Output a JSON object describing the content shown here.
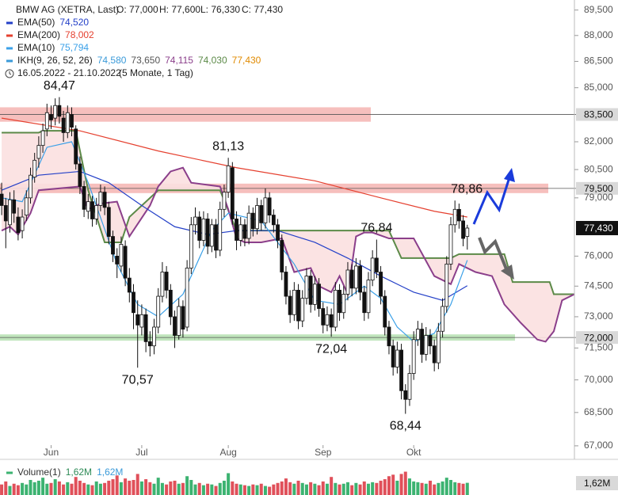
{
  "chart_data": {
    "type": "candlestick",
    "title": "BMW AG (XETRA, Last)",
    "ohlc_labels": [
      "O: 77,000",
      "H: 77,600",
      "L: 76,330",
      "C: 77,430"
    ],
    "date_range": "16.05.2022 - 21.10.2022",
    "period": "(5 Monate, 1 Tag)",
    "log": true,
    "ylim": [
      66.4,
      90.1
    ],
    "yticks": [
      {
        "value": 89.5,
        "label": "89,500"
      },
      {
        "value": 88,
        "label": "88,000"
      },
      {
        "value": 86.5,
        "label": "86,500"
      },
      {
        "value": 85,
        "label": "85,000"
      },
      {
        "value": 82,
        "label": "82,000"
      },
      {
        "value": 80.5,
        "label": "80,500"
      },
      {
        "value": 79,
        "label": "79,000"
      },
      {
        "value": 76,
        "label": "76,000"
      },
      {
        "value": 74.5,
        "label": "74,500"
      },
      {
        "value": 73,
        "label": "73,000"
      },
      {
        "value": 71.5,
        "label": "71,500"
      },
      {
        "value": 70,
        "label": "70,000"
      },
      {
        "value": 68.5,
        "label": "68,500"
      },
      {
        "value": 67,
        "label": "67,000"
      }
    ],
    "xlim": [
      -0.4,
      139
    ],
    "xticks": [
      {
        "value": 12,
        "label": "Jun"
      },
      {
        "value": 34,
        "label": "Jul"
      },
      {
        "value": 55,
        "label": "Aug"
      },
      {
        "value": 78,
        "label": "Sep"
      },
      {
        "value": 100,
        "label": "Okt"
      }
    ],
    "candles": [
      [
        79.2,
        79.8,
        78.1,
        78.6
      ],
      [
        78.6,
        79.0,
        76.4,
        77.8
      ],
      [
        77.6,
        79.3,
        77.2,
        78.9
      ],
      [
        78.9,
        79.4,
        77.7,
        78.2
      ],
      [
        78.0,
        78.5,
        76.8,
        77.2
      ],
      [
        77.3,
        78.4,
        76.9,
        78.0
      ],
      [
        78.1,
        79.4,
        77.8,
        79.0
      ],
      [
        79.0,
        80.6,
        78.7,
        80.2
      ],
      [
        80.1,
        81.4,
        79.8,
        81.0
      ],
      [
        81.1,
        82.3,
        80.6,
        81.8
      ],
      [
        81.8,
        83.0,
        81.4,
        82.6
      ],
      [
        82.7,
        84.1,
        82.3,
        83.6
      ],
      [
        83.5,
        84.0,
        82.7,
        83.2
      ],
      [
        83.3,
        84.4,
        82.9,
        84.0
      ],
      [
        84.0,
        84.47,
        83.0,
        83.4
      ],
      [
        83.3,
        83.7,
        82.0,
        82.5
      ],
      [
        82.5,
        84.0,
        82.2,
        83.6
      ],
      [
        83.5,
        83.9,
        82.3,
        82.8
      ],
      [
        82.7,
        82.9,
        80.5,
        80.8
      ],
      [
        80.8,
        81.2,
        79.2,
        79.6
      ],
      [
        79.6,
        79.9,
        78.0,
        78.4
      ],
      [
        78.3,
        79.2,
        77.9,
        78.8
      ],
      [
        78.8,
        79.1,
        77.5,
        77.9
      ],
      [
        77.9,
        79.0,
        77.6,
        78.6
      ],
      [
        78.6,
        79.7,
        78.3,
        79.3
      ],
      [
        79.3,
        79.6,
        78.1,
        78.5
      ],
      [
        78.5,
        78.8,
        76.6,
        77.0
      ],
      [
        77.0,
        77.3,
        75.7,
        76.1
      ],
      [
        76.0,
        76.4,
        74.9,
        75.6
      ],
      [
        75.5,
        77.0,
        75.2,
        76.6
      ],
      [
        76.5,
        76.8,
        74.5,
        74.9
      ],
      [
        74.9,
        75.4,
        73.7,
        74.2
      ],
      [
        74.2,
        74.6,
        72.4,
        73.2
      ],
      [
        73.1,
        73.8,
        70.57,
        72.6
      ],
      [
        72.5,
        73.6,
        72.1,
        73.1
      ],
      [
        73.1,
        73.4,
        71.3,
        71.8
      ],
      [
        71.8,
        72.3,
        71.1,
        71.6
      ],
      [
        71.6,
        72.9,
        71.2,
        72.5
      ],
      [
        72.5,
        74.4,
        72.2,
        74.0
      ],
      [
        74.0,
        75.7,
        73.7,
        75.2
      ],
      [
        75.2,
        75.5,
        73.9,
        74.3
      ],
      [
        74.3,
        74.6,
        72.6,
        73.0
      ],
      [
        73.0,
        73.3,
        71.5,
        72.1
      ],
      [
        72.1,
        73.9,
        71.9,
        73.5
      ],
      [
        73.5,
        73.8,
        72.0,
        72.4
      ],
      [
        72.5,
        75.8,
        72.3,
        75.4
      ],
      [
        75.4,
        78.0,
        75.1,
        77.6
      ],
      [
        77.6,
        78.5,
        77.1,
        78.0
      ],
      [
        78.0,
        78.3,
        76.4,
        76.8
      ],
      [
        76.8,
        78.3,
        76.5,
        77.9
      ],
      [
        77.9,
        78.2,
        76.1,
        76.5
      ],
      [
        76.5,
        77.9,
        76.2,
        77.6
      ],
      [
        77.6,
        77.9,
        75.9,
        76.3
      ],
      [
        76.3,
        78.8,
        76.0,
        78.4
      ],
      [
        78.4,
        79.7,
        78.0,
        79.3
      ],
      [
        79.3,
        81.13,
        79.0,
        80.7
      ],
      [
        80.6,
        80.9,
        77.6,
        77.9
      ],
      [
        77.9,
        78.3,
        76.3,
        76.8
      ],
      [
        76.8,
        78.0,
        76.5,
        77.6
      ],
      [
        77.6,
        77.9,
        76.5,
        76.9
      ],
      [
        76.9,
        78.6,
        76.6,
        78.2
      ],
      [
        78.2,
        78.5,
        77.0,
        77.4
      ],
      [
        77.4,
        79.0,
        77.1,
        78.6
      ],
      [
        78.6,
        78.9,
        77.3,
        77.7
      ],
      [
        77.7,
        79.5,
        77.4,
        79.0
      ],
      [
        79.0,
        79.3,
        77.7,
        78.1
      ],
      [
        78.1,
        78.4,
        77.2,
        77.6
      ],
      [
        77.6,
        77.9,
        76.4,
        76.8
      ],
      [
        76.8,
        77.1,
        74.8,
        75.2
      ],
      [
        75.2,
        75.5,
        73.6,
        74.0
      ],
      [
        74.0,
        74.3,
        72.7,
        73.1
      ],
      [
        73.1,
        74.7,
        72.8,
        74.3
      ],
      [
        74.3,
        74.6,
        72.4,
        72.8
      ],
      [
        72.8,
        74.3,
        72.5,
        73.9
      ],
      [
        73.9,
        75.4,
        73.6,
        75.0
      ],
      [
        75.0,
        75.3,
        73.2,
        73.6
      ],
      [
        73.6,
        75.0,
        73.3,
        74.6
      ],
      [
        74.6,
        74.9,
        73.0,
        73.4
      ],
      [
        73.4,
        73.7,
        72.2,
        72.6
      ],
      [
        72.6,
        73.5,
        72.3,
        73.1
      ],
      [
        73.1,
        73.4,
        72.04,
        72.5
      ],
      [
        72.5,
        74.7,
        72.3,
        74.3
      ],
      [
        74.3,
        74.6,
        72.8,
        73.2
      ],
      [
        73.2,
        74.5,
        72.9,
        74.1
      ],
      [
        74.1,
        75.7,
        73.8,
        75.3
      ],
      [
        75.3,
        75.6,
        74.0,
        74.4
      ],
      [
        74.4,
        75.9,
        74.1,
        75.5
      ],
      [
        75.5,
        75.8,
        73.8,
        74.2
      ],
      [
        74.2,
        74.5,
        72.8,
        73.2
      ],
      [
        73.2,
        75.2,
        72.9,
        74.8
      ],
      [
        74.8,
        76.3,
        74.5,
        75.9
      ],
      [
        75.9,
        76.84,
        74.9,
        75.2
      ],
      [
        75.2,
        75.5,
        73.6,
        74.0
      ],
      [
        74.0,
        74.3,
        72.1,
        72.5
      ],
      [
        72.5,
        72.8,
        71.2,
        71.6
      ],
      [
        71.6,
        71.9,
        70.2,
        70.6
      ],
      [
        70.6,
        71.8,
        70.3,
        71.4
      ],
      [
        71.4,
        71.7,
        69.1,
        69.5
      ],
      [
        69.5,
        69.8,
        68.44,
        69.1
      ],
      [
        69.1,
        70.7,
        68.8,
        70.3
      ],
      [
        70.3,
        72.3,
        70.0,
        71.9
      ],
      [
        71.9,
        72.8,
        71.6,
        72.4
      ],
      [
        72.4,
        72.7,
        70.8,
        71.2
      ],
      [
        71.2,
        72.5,
        70.9,
        72.1
      ],
      [
        72.1,
        72.4,
        71.2,
        71.6
      ],
      [
        71.6,
        71.9,
        70.4,
        70.8
      ],
      [
        70.8,
        72.7,
        70.5,
        72.3
      ],
      [
        72.3,
        73.9,
        72.0,
        73.5
      ],
      [
        73.5,
        76.0,
        73.2,
        75.6
      ],
      [
        75.6,
        78.0,
        75.3,
        77.6
      ],
      [
        77.6,
        78.86,
        77.2,
        78.4
      ],
      [
        78.4,
        78.7,
        77.4,
        77.8
      ],
      [
        77.8,
        78.1,
        76.5,
        76.9
      ],
      [
        77.0,
        77.6,
        76.33,
        77.43
      ]
    ],
    "up_color": "#ffffff",
    "down_color": "#111111",
    "series": [
      {
        "name": "EMA(50)",
        "value_label": "74,520",
        "color": "#2440c8",
        "x": [
          0,
          9,
          19,
          26,
          34,
          42,
          50,
          57,
          67,
          76,
          84,
          92,
          100,
          107,
          113
        ],
        "values": [
          79.4,
          80.2,
          80.4,
          79.8,
          78.6,
          77.5,
          77.1,
          77.3,
          77.3,
          76.7,
          75.9,
          75.0,
          74.2,
          73.8,
          74.52
        ]
      },
      {
        "name": "EMA(200)",
        "value_label": "78,002",
        "color": "#e5402f",
        "x": [
          0,
          19,
          38,
          57,
          76,
          92,
          105,
          113
        ],
        "values": [
          83.3,
          82.6,
          81.5,
          80.6,
          79.9,
          79.0,
          78.3,
          78.002
        ]
      },
      {
        "name": "EMA(10)",
        "value_label": "75,794",
        "color": "#3aa0e8",
        "x": [
          0,
          5,
          11,
          17,
          21,
          28,
          33,
          38,
          44,
          51,
          55,
          63,
          71,
          76,
          82,
          88,
          92,
          96,
          100,
          105,
          109,
          113
        ],
        "values": [
          79.0,
          78.8,
          81.7,
          82.0,
          79.8,
          75.6,
          73.6,
          73.0,
          74.1,
          77.3,
          78.2,
          77.8,
          75.6,
          73.8,
          73.6,
          74.5,
          73.9,
          72.5,
          71.8,
          72.2,
          73.6,
          75.794
        ]
      }
    ],
    "ikh": {
      "name": "IKH(9, 26, 52, 26)",
      "color": "#3a9ad9",
      "value_labels": [
        "74,580",
        "73,650",
        "74,115",
        "74,030",
        "77,430"
      ],
      "value_colors": [
        "#3a9ad9",
        "#555555",
        "#8b3f8b",
        "#5c8a48",
        "#e08a00"
      ],
      "cloud_color": "#fbe0e0",
      "span_a": {
        "color": "#5c8a48",
        "x": [
          0,
          9,
          10,
          18,
          21,
          25,
          29,
          31,
          38,
          53,
          57,
          94,
          97,
          109,
          111,
          122,
          124,
          133,
          134,
          139
        ],
        "values": [
          82.5,
          82.5,
          82.6,
          82.6,
          79.4,
          76.7,
          76.7,
          78.0,
          79.4,
          79.4,
          77.3,
          77.3,
          75.9,
          75.9,
          76.1,
          76.1,
          74.7,
          74.7,
          74.1,
          74.1
        ]
      },
      "span_b": {
        "color": "#8b3f8b",
        "x": [
          0,
          2,
          4,
          7,
          9,
          19,
          21,
          24,
          28,
          31,
          36,
          38,
          41,
          44,
          46,
          53,
          55,
          57,
          59,
          63,
          68,
          71,
          75,
          77,
          80,
          82,
          84,
          86,
          88,
          90,
          94,
          100,
          105,
          109,
          111,
          115,
          119,
          122,
          126,
          130,
          132,
          134,
          136,
          139
        ],
        "values": [
          77.3,
          77.5,
          77.1,
          78.2,
          79.4,
          79.6,
          78.4,
          78.7,
          78.8,
          77.0,
          78.6,
          79.6,
          80.4,
          80.6,
          79.8,
          79.6,
          78.4,
          76.9,
          76.7,
          76.7,
          76.9,
          75.2,
          75.4,
          74.5,
          74.2,
          75.0,
          74.1,
          77.0,
          77.2,
          77.2,
          76.9,
          76.9,
          75.0,
          74.6,
          75.6,
          75.2,
          75.0,
          73.6,
          72.7,
          71.9,
          71.8,
          72.3,
          73.8,
          74.1
        ]
      }
    },
    "zones": [
      {
        "from": 83.1,
        "to": 83.9,
        "color": "#f4b4b2"
      },
      {
        "from": 79.25,
        "to": 79.75,
        "color": "#f4b4b2"
      },
      {
        "from": 71.85,
        "to": 72.15,
        "color": "#b5e0b0"
      }
    ],
    "levels": [
      {
        "value": 83.5,
        "label": "83,500"
      },
      {
        "value": 79.5,
        "label": "79,500"
      },
      {
        "value": 72.0,
        "label": "72,000"
      }
    ],
    "last": {
      "value": 77.43,
      "label": "77,430"
    },
    "annotations": [
      {
        "value": 84.47,
        "label": "84,47"
      },
      {
        "value": 81.13,
        "label": "81,13"
      },
      {
        "value": 70.57,
        "label": "70,57"
      },
      {
        "value": 72.04,
        "label": "72,04"
      },
      {
        "value": 76.84,
        "label": "76,84"
      },
      {
        "value": 68.44,
        "label": "68,44"
      },
      {
        "value": 78.86,
        "label": "78,86"
      }
    ],
    "volume": {
      "name": "Volume(1)",
      "header_labels": [
        "1,62M",
        "1,62M"
      ],
      "badge": "1,62M",
      "ylim": [
        0,
        4
      ],
      "up_color": "#3cb371",
      "down_color": "#e0505a",
      "values": [
        1.4,
        1.8,
        1.2,
        1.5,
        1.3,
        1.6,
        1.4,
        2.0,
        1.7,
        1.9,
        2.3,
        1.5,
        1.6,
        2.1,
        1.8,
        1.4,
        1.7,
        1.5,
        2.4,
        1.9,
        1.6,
        1.4,
        1.3,
        1.8,
        1.5,
        1.6,
        1.9,
        2.1,
        2.6,
        1.7,
        2.2,
        1.9,
        2.0,
        2.8,
        1.8,
        2.1,
        1.7,
        1.5,
        2.3,
        1.6,
        1.4,
        1.8,
        1.9,
        1.5,
        1.6,
        2.5,
        2.0,
        1.4,
        1.6,
        1.3,
        1.5,
        1.4,
        1.2,
        1.6,
        1.9,
        2.9,
        1.8,
        1.5,
        1.4,
        1.3,
        1.2,
        1.4,
        1.3,
        1.5,
        1.2,
        1.1,
        1.4,
        1.6,
        1.8,
        2.2,
        1.7,
        1.5,
        1.9,
        1.6,
        1.4,
        1.7,
        1.5,
        1.3,
        1.8,
        1.5,
        2.4,
        1.6,
        1.4,
        1.5,
        1.7,
        1.3,
        1.6,
        1.4,
        1.8,
        1.5,
        1.7,
        1.6,
        1.9,
        2.1,
        2.5,
        2.7,
        1.9,
        2.8,
        3.1,
        2.2,
        1.8,
        1.7,
        1.6,
        1.5,
        1.9,
        1.4,
        1.6,
        1.8,
        2.3,
        2.0,
        1.7,
        1.6,
        1.5,
        1.62
      ]
    }
  }
}
